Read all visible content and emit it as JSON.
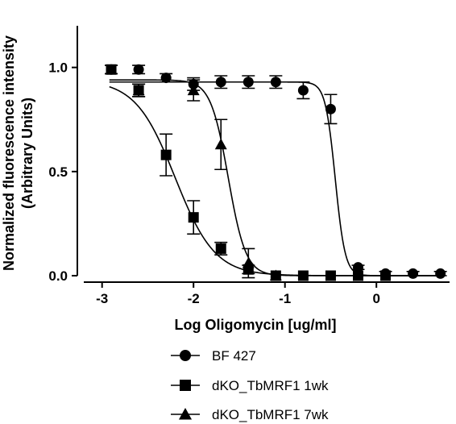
{
  "chart_data": {
    "type": "scatter",
    "title": "",
    "xlabel": "Log Oligomycin [ug/ml]",
    "ylabel": "Normalized fluorescence intensity",
    "ylabel2": "(Arbitrary Units)",
    "xlim": [
      -3.2,
      0.8
    ],
    "ylim": [
      0,
      1.2
    ],
    "x_ticks": [
      -3,
      -2,
      -1,
      0
    ],
    "x_tick_labels": [
      "-3",
      "-2",
      "-1",
      "0"
    ],
    "y_ticks": [
      0.0,
      0.5,
      1.0
    ],
    "y_tick_labels": [
      "0.0",
      "0.5",
      "1.0"
    ],
    "grid": false,
    "legend_position": "bottom",
    "series": [
      {
        "name": "BF 427",
        "marker": "circle",
        "points": [
          {
            "x": -2.9,
            "y": 0.99,
            "err": 0.02
          },
          {
            "x": -2.6,
            "y": 0.99,
            "err": 0.02
          },
          {
            "x": -2.3,
            "y": 0.95,
            "err": 0.02
          },
          {
            "x": -2.0,
            "y": 0.92,
            "err": 0.03
          },
          {
            "x": -1.7,
            "y": 0.93,
            "err": 0.03
          },
          {
            "x": -1.4,
            "y": 0.93,
            "err": 0.03
          },
          {
            "x": -1.1,
            "y": 0.93,
            "err": 0.03
          },
          {
            "x": -0.8,
            "y": 0.89,
            "err": 0.04
          },
          {
            "x": -0.5,
            "y": 0.8,
            "err": 0.07
          },
          {
            "x": -0.2,
            "y": 0.04,
            "err": 0.01
          },
          {
            "x": 0.1,
            "y": 0.01,
            "err": 0.01
          },
          {
            "x": 0.4,
            "y": 0.01,
            "err": 0.01
          },
          {
            "x": 0.7,
            "y": 0.01,
            "err": 0.01
          }
        ],
        "fit": {
          "top": 0.93,
          "bottom": 0.0,
          "logIC50": -0.45,
          "hill": -8
        }
      },
      {
        "name": "dKO_TbMRF1 1wk",
        "marker": "square",
        "points": [
          {
            "x": -2.9,
            "y": 0.99,
            "err": 0.02
          },
          {
            "x": -2.6,
            "y": 0.89,
            "err": 0.03
          },
          {
            "x": -2.3,
            "y": 0.58,
            "err": 0.1
          },
          {
            "x": -2.0,
            "y": 0.28,
            "err": 0.08
          },
          {
            "x": -1.7,
            "y": 0.13,
            "err": 0.03
          },
          {
            "x": -1.4,
            "y": 0.03,
            "err": 0.02
          },
          {
            "x": -1.1,
            "y": 0.0,
            "err": 0.0
          },
          {
            "x": -0.8,
            "y": 0.0,
            "err": 0.0
          },
          {
            "x": -0.5,
            "y": 0.0,
            "err": 0.0
          },
          {
            "x": -0.2,
            "y": 0.0,
            "err": 0.0
          },
          {
            "x": 0.1,
            "y": 0.0,
            "err": 0.0
          }
        ],
        "fit": {
          "top": 0.94,
          "bottom": 0.0,
          "logIC50": -2.2,
          "hill": -2
        }
      },
      {
        "name": "dKO_TbMRF1 7wk",
        "marker": "triangle",
        "points": [
          {
            "x": -2.6,
            "y": 0.89,
            "err": 0.03
          },
          {
            "x": -2.0,
            "y": 0.89,
            "err": 0.05
          },
          {
            "x": -1.7,
            "y": 0.63,
            "err": 0.12
          },
          {
            "x": -1.4,
            "y": 0.06,
            "err": 0.07
          },
          {
            "x": -1.1,
            "y": 0.0,
            "err": 0.0
          }
        ],
        "fit": {
          "top": 0.94,
          "bottom": 0.0,
          "logIC50": -1.62,
          "hill": -4.5
        }
      }
    ]
  }
}
